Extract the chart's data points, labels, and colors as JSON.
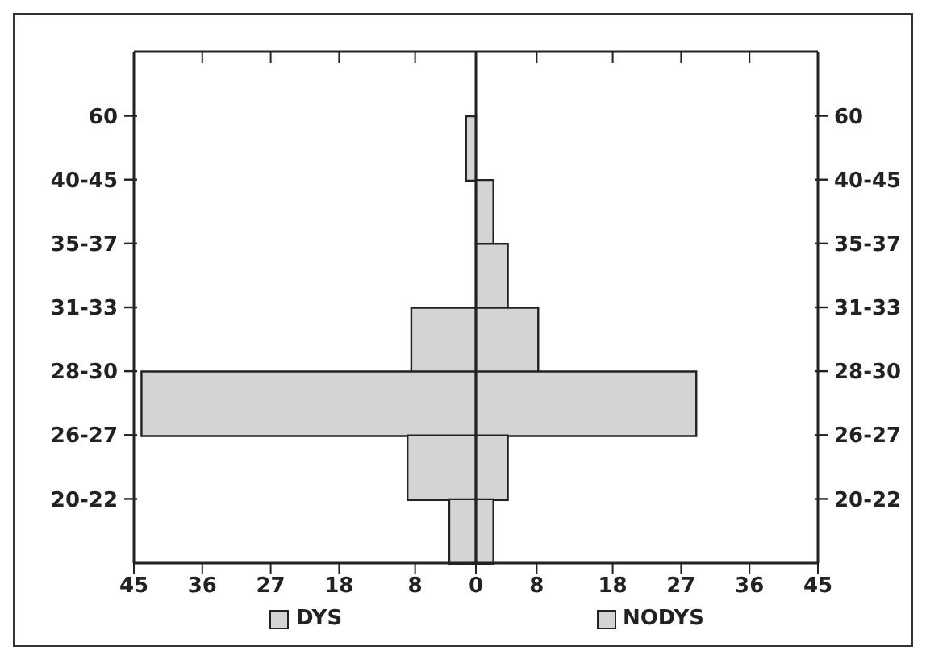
{
  "chart_data": {
    "type": "bar",
    "orientation": "horizontal",
    "stacked": true,
    "categories": [
      "60",
      "40-45",
      "35-37",
      "31-33",
      "28-30",
      "26-27",
      "20-22"
    ],
    "series": [
      {
        "name": "DYS",
        "color": "#d4d4d4",
        "values": [
          -1.3,
          0,
          0,
          -8.5,
          -44,
          -9,
          -3.5
        ]
      },
      {
        "name": "NODYS",
        "color": "#d4d4d4",
        "values": [
          0,
          2.3,
          4.2,
          8.2,
          29,
          4.2,
          2.3
        ]
      }
    ],
    "xlim": [
      -45,
      45
    ],
    "xticks": [
      {
        "value": -45,
        "label": "45"
      },
      {
        "value": -36,
        "label": "36"
      },
      {
        "value": -27,
        "label": "27"
      },
      {
        "value": -18,
        "label": "18"
      },
      {
        "value": -8,
        "label": "8"
      },
      0,
      8,
      18,
      27,
      36,
      45
    ],
    "ref_lines": [
      {
        "axis": "x",
        "value": 0,
        "color": "#222222"
      }
    ],
    "grid": false,
    "legend": "bottom"
  }
}
